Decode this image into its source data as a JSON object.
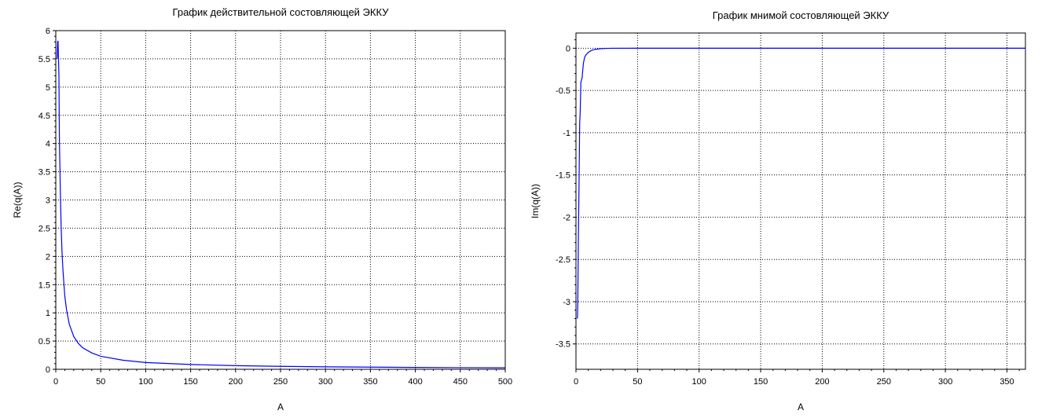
{
  "chart_data": [
    {
      "type": "line",
      "title": "График действительной состовляющей ЭККУ",
      "xlabel": "A",
      "ylabel": "Re(q(A))",
      "xlim": [
        0,
        500
      ],
      "ylim": [
        0,
        6
      ],
      "grid": true,
      "xticks": [
        0,
        50,
        100,
        150,
        200,
        250,
        300,
        350,
        400,
        450,
        500
      ],
      "yticks": [
        0,
        0.5,
        1,
        1.5,
        2,
        2.5,
        3,
        3.5,
        4,
        4.5,
        5,
        5.5,
        6
      ],
      "series": [
        {
          "color": "#0000ff",
          "x": [
            1.5,
            2,
            2.5,
            3,
            3.5,
            4,
            5,
            6,
            7,
            8,
            10,
            12,
            15,
            20,
            25,
            30,
            40,
            50,
            75,
            100,
            150,
            200,
            250,
            300,
            350,
            400,
            450,
            500
          ],
          "y": [
            5.5,
            5.8,
            5.82,
            5.5,
            5.2,
            4.1,
            3.2,
            2.5,
            2.05,
            1.75,
            1.3,
            1.05,
            0.8,
            0.58,
            0.46,
            0.38,
            0.29,
            0.23,
            0.16,
            0.12,
            0.085,
            0.064,
            0.052,
            0.044,
            0.038,
            0.033,
            0.029,
            0.026
          ]
        }
      ]
    },
    {
      "type": "line",
      "title": "График мнимой состовляющей ЭККУ",
      "xlabel": "A",
      "ylabel": "Im(q(A))",
      "xlim": [
        0,
        365
      ],
      "ylim": [
        -3.8,
        0.18
      ],
      "grid": true,
      "xticks": [
        0,
        50,
        100,
        150,
        200,
        250,
        300,
        350
      ],
      "yticks": [
        -3.5,
        -3,
        -2.5,
        -2,
        -1.5,
        -1,
        -0.5,
        0
      ],
      "series": [
        {
          "color": "#0000ff",
          "x": [
            1.2,
            1.5,
            2,
            2.5,
            3,
            3.5,
            4,
            5,
            6,
            7,
            8,
            10,
            12,
            15,
            20,
            25,
            30,
            50,
            100,
            200,
            365
          ],
          "y": [
            -3.2,
            -3.0,
            -2.2,
            -1.6,
            -0.9,
            -0.72,
            -0.4,
            -0.35,
            -0.18,
            -0.11,
            -0.08,
            -0.05,
            -0.03,
            -0.015,
            -0.006,
            -0.002,
            -0.001,
            0,
            0,
            0,
            0
          ]
        }
      ]
    }
  ]
}
